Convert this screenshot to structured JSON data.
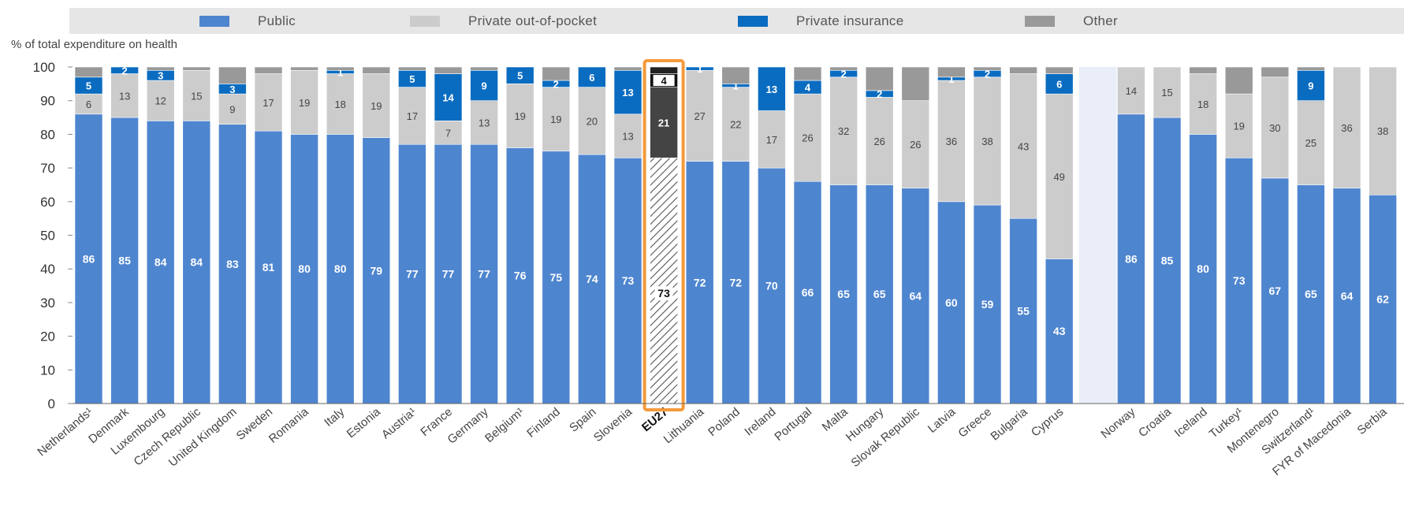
{
  "legend": {
    "items": [
      {
        "label": "Public",
        "color": "#4e85cf"
      },
      {
        "label": "Private out-of-pocket",
        "color": "#cccccc"
      },
      {
        "label": "Private insurance",
        "color": "#0a6cc0"
      },
      {
        "label": "Other",
        "color": "#999999"
      }
    ]
  },
  "chart_data": {
    "type": "bar",
    "stacked": true,
    "ylabel": "% of total expenditure on health",
    "ylim": [
      0,
      100
    ],
    "yticks": [
      "0",
      "10",
      "20",
      "30",
      "40",
      "50",
      "60",
      "70",
      "80",
      "90",
      "100"
    ],
    "highlight_category": "EU27",
    "highlight_color": "#f39a3a",
    "categories": [
      "Netherlands¹",
      "Denmark",
      "Luxembourg",
      "Czech Republic",
      "United Kingdom",
      "Sweden",
      "Romania",
      "Italy",
      "Estonia",
      "Austria¹",
      "France",
      "Germany",
      "Belgium¹",
      "Finland",
      "Spain",
      "Slovenia",
      "EU27",
      "Lithuania",
      "Poland",
      "Ireland",
      "Portugal",
      "Malta",
      "Hungary",
      "Slovak Republic",
      "Latvia",
      "Greece",
      "Bulgaria",
      "Cyprus",
      "",
      "Norway",
      "Croatia",
      "Iceland",
      "Turkey¹",
      "Montenegro",
      "Switzerland¹",
      "FYR of Macedonia",
      "Serbia"
    ],
    "series": [
      {
        "name": "Public",
        "values": [
          86,
          85,
          84,
          84,
          83,
          81,
          80,
          80,
          79,
          77,
          77,
          77,
          76,
          75,
          74,
          73,
          73,
          72,
          72,
          70,
          66,
          65,
          65,
          64,
          60,
          59,
          55,
          43,
          null,
          86,
          85,
          80,
          73,
          67,
          65,
          64,
          62
        ]
      },
      {
        "name": "Private out-of-pocket",
        "values": [
          6,
          13,
          12,
          15,
          9,
          17,
          19,
          18,
          19,
          17,
          7,
          13,
          19,
          19,
          20,
          13,
          21,
          27,
          22,
          17,
          26,
          32,
          26,
          26,
          36,
          38,
          43,
          49,
          null,
          14,
          15,
          18,
          19,
          30,
          25,
          36,
          38
        ]
      },
      {
        "name": "Private insurance",
        "values": [
          5,
          2,
          3,
          0,
          3,
          0,
          0,
          1,
          0,
          5,
          14,
          9,
          5,
          2,
          6,
          13,
          4,
          1,
          1,
          13,
          4,
          2,
          2,
          0,
          1,
          2,
          0,
          6,
          null,
          0,
          0,
          0,
          0,
          0,
          9,
          0,
          0
        ]
      },
      {
        "name": "Other",
        "values": [
          3,
          0,
          1,
          1,
          5,
          2,
          1,
          1,
          2,
          1,
          2,
          1,
          0,
          4,
          0,
          1,
          2,
          0,
          5,
          0,
          4,
          1,
          7,
          10,
          3,
          1,
          2,
          2,
          null,
          0,
          0,
          2,
          8,
          3,
          1,
          0,
          0
        ]
      }
    ]
  }
}
